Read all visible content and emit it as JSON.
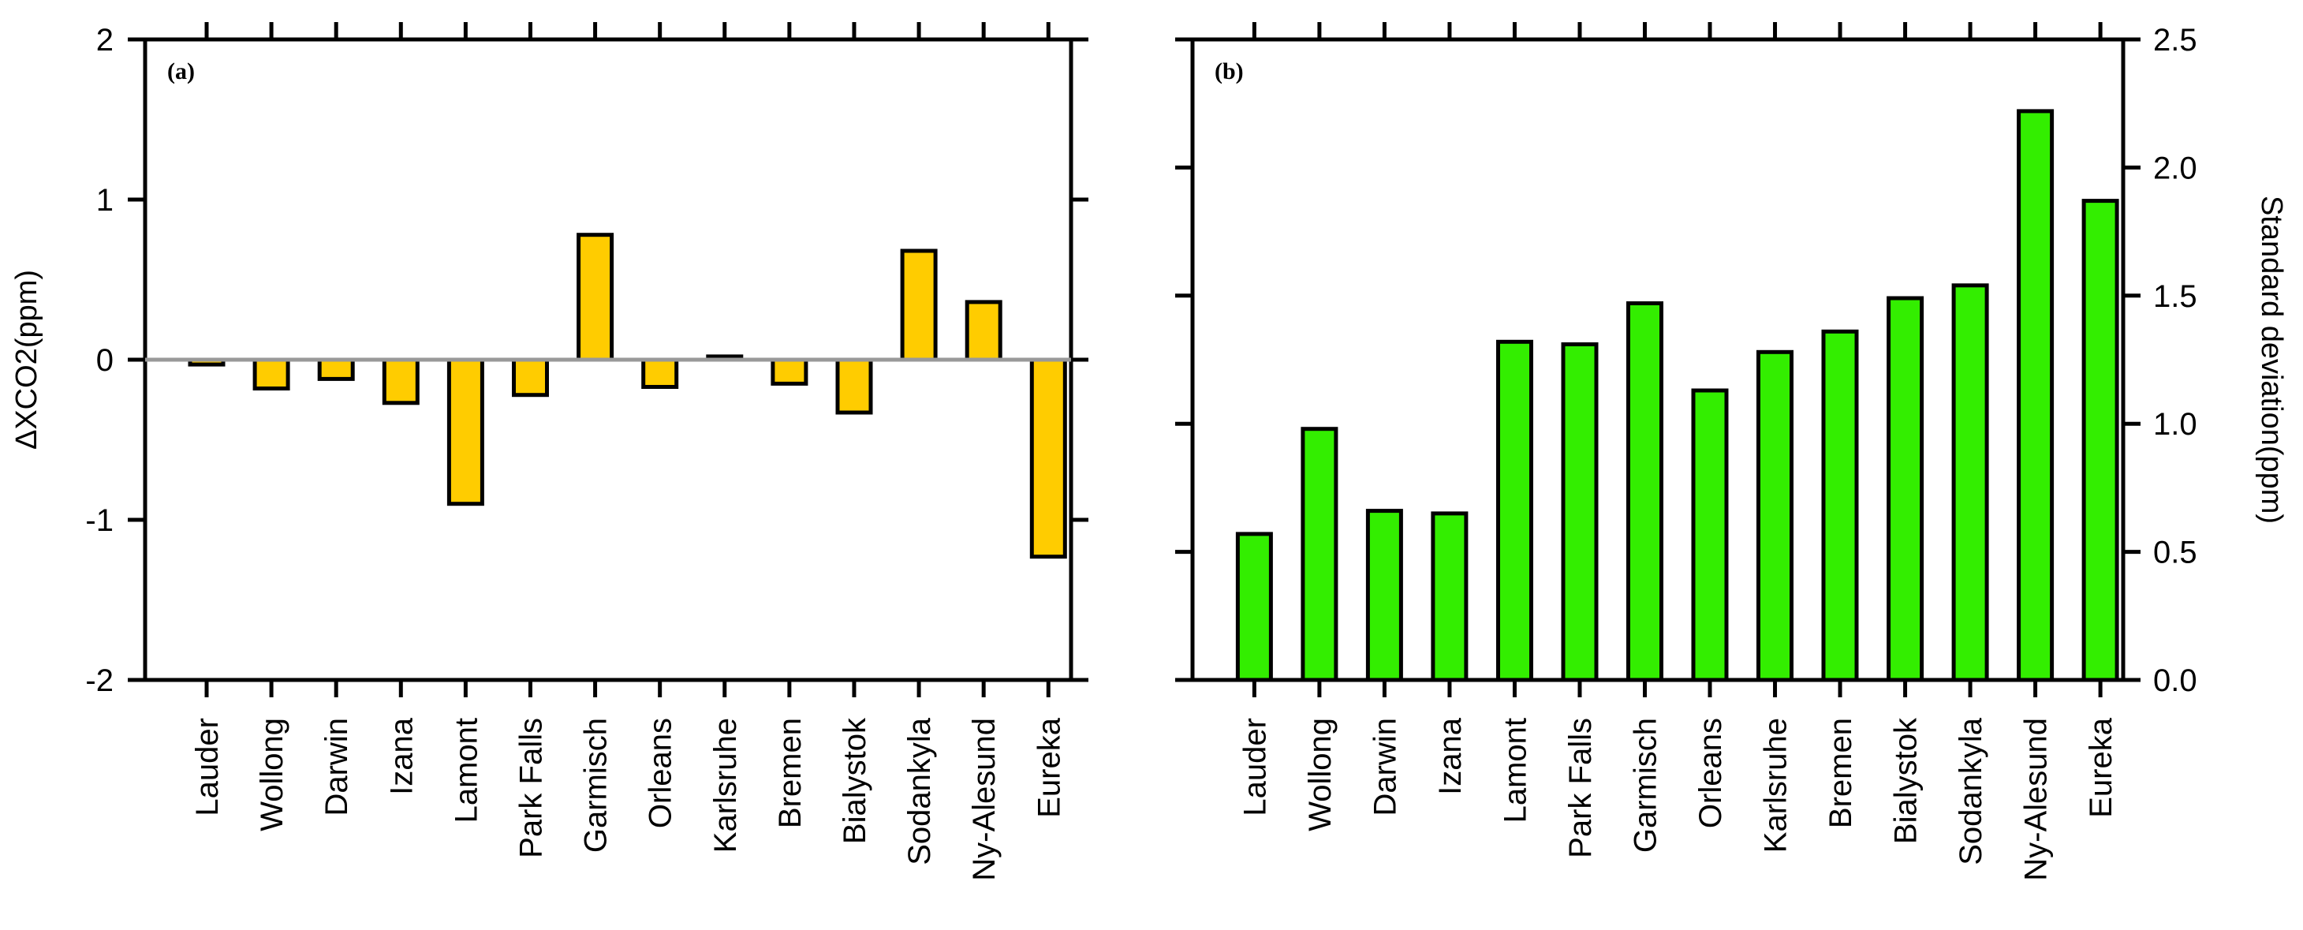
{
  "chart_data": [
    {
      "type": "bar",
      "panel_label": "(a)",
      "categories": [
        "Lauder",
        "Wollong",
        "Darwin",
        "Izana",
        "Lamont",
        "Park Falls",
        "Garmisch",
        "Orleans",
        "Karlsruhe",
        "Bremen",
        "Bialystok",
        "Sodankyla",
        "Ny-Alesund",
        "Eureka"
      ],
      "values": [
        -0.03,
        -0.18,
        -0.12,
        -0.27,
        -0.9,
        -0.22,
        0.78,
        -0.17,
        0.02,
        -0.15,
        -0.33,
        0.68,
        0.36,
        -1.23
      ],
      "ylabel": "ΔXCO2(ppm)",
      "ylim": [
        -2,
        2
      ],
      "yticks": [
        -2,
        -1,
        0,
        1,
        2
      ],
      "ytick_labels": [
        "-2",
        "-1",
        "0",
        "1",
        "2"
      ],
      "bar_color": "#FFCC00",
      "zero_line_color": "#999999",
      "y_axis_side": "left"
    },
    {
      "type": "bar",
      "panel_label": "(b)",
      "categories": [
        "Lauder",
        "Wollong",
        "Darwin",
        "Izana",
        "Lamont",
        "Park Falls",
        "Garmisch",
        "Orleans",
        "Karlsruhe",
        "Bremen",
        "Bialystok",
        "Sodankyla",
        "Ny-Alesund",
        "Eureka"
      ],
      "values": [
        0.57,
        0.98,
        0.66,
        0.65,
        1.32,
        1.31,
        1.47,
        1.13,
        1.28,
        1.36,
        1.49,
        1.54,
        2.22,
        1.87
      ],
      "ylabel": "Standard deviation(ppm)",
      "ylim": [
        0,
        2.5
      ],
      "yticks": [
        0,
        0.5,
        1.0,
        1.5,
        2.0,
        2.5
      ],
      "ytick_labels": [
        "0.0",
        "0.5",
        "1.0",
        "1.5",
        "2.0",
        "2.5"
      ],
      "bar_color": "#33EE00",
      "y_axis_side": "right"
    }
  ]
}
